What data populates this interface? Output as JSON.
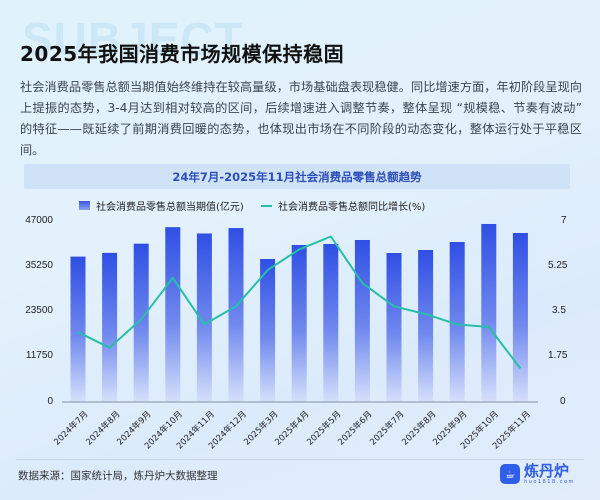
{
  "header": {
    "bg_word": "SUBJECT",
    "title": "2025年我国消费市场规模保持稳固",
    "description": "社会消费品零售总额当期值始终维持在较高量级，市场基础盘表现稳健。同比增速方面，年初阶段呈现向上提振的态势，3-4月达到相对较高的区间，后续增速进入调整节奏，整体呈现 “规模稳、节奏有波动” 的特征——既延续了前期消费回暖的态势，也体现出市场在不同阶段的动态变化，整体运行处于平稳区间。"
  },
  "chart_data": {
    "type": "bar",
    "title": "24年7月-2025年11月社会消费品零售总额趋势",
    "xlabel": "",
    "ylabel": "",
    "categories": [
      "2024年7月",
      "2024年8月",
      "2024年9月",
      "2024年10月",
      "2024年11月",
      "2024年12月",
      "2025年3月",
      "2025年4月",
      "2025年5月",
      "2025年6月",
      "2025年7月",
      "2025年8月",
      "2025年9月",
      "2025年10月",
      "2025年11月"
    ],
    "series": [
      {
        "name": "社会消费品零售总额当期值(亿元)",
        "type": "bar",
        "axis": "left",
        "color": "#3352e6",
        "values": [
          37757,
          38726,
          41112,
          45396,
          43763,
          45172,
          37130,
          40770,
          41030,
          42070,
          38690,
          39470,
          41550,
          46230,
          43890
        ]
      },
      {
        "name": "社会消费品零售总额同比增长(%)",
        "type": "line",
        "axis": "right",
        "color": "#26bfa8",
        "values": [
          2.7,
          2.1,
          3.2,
          4.8,
          3.0,
          3.7,
          5.1,
          5.9,
          6.4,
          4.6,
          3.7,
          3.4,
          3.0,
          2.9,
          1.3
        ]
      }
    ],
    "ylim": [
      0,
      47000
    ],
    "y2lim": [
      0,
      7
    ],
    "yticks": [
      "47000",
      "35250",
      "23500",
      "11750",
      "0"
    ],
    "y2ticks": [
      "7",
      "5.25",
      "3.5",
      "1.75",
      "0"
    ],
    "grid": false,
    "legend_position": "top"
  },
  "footer": {
    "source": "数据来源：国家统计局，炼丹炉大数据整理",
    "logo_name": "炼丹炉",
    "logo_url": "huo1818.com"
  }
}
